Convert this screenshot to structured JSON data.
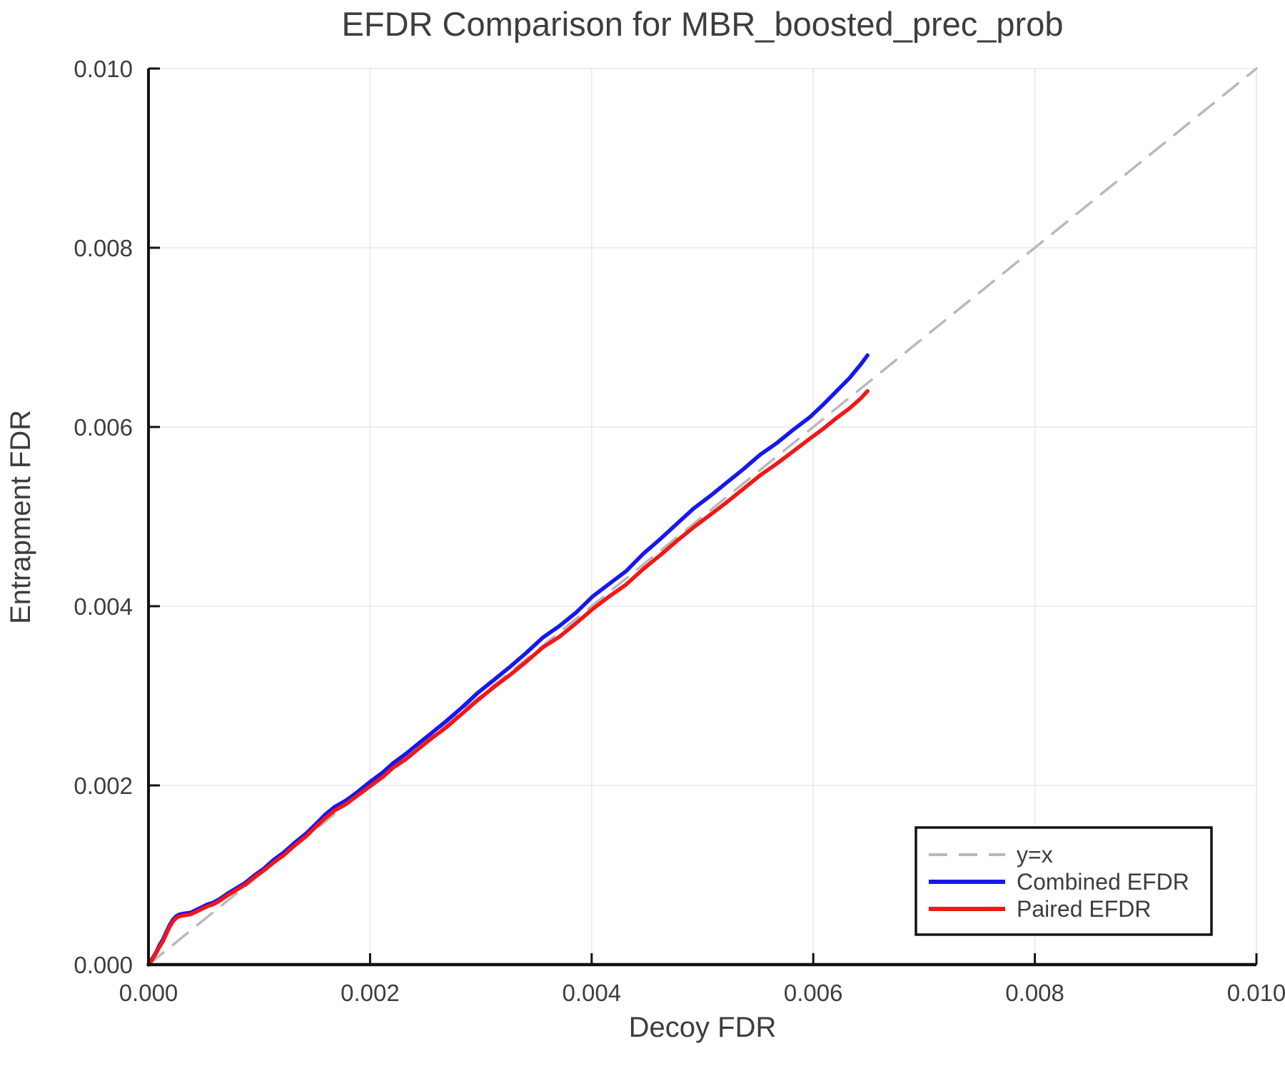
{
  "chart_data": {
    "type": "line",
    "title": "EFDR Comparison for MBR_boosted_prec_prob",
    "xlabel": "Decoy FDR",
    "ylabel": "Entrapment FDR",
    "xlim": [
      0,
      0.01
    ],
    "ylim": [
      0,
      0.01
    ],
    "grid": true,
    "xticks": {
      "values": [
        0,
        0.002,
        0.004,
        0.006,
        0.008,
        0.01
      ],
      "labels": [
        "0.000",
        "0.002",
        "0.004",
        "0.006",
        "0.008",
        "0.010"
      ]
    },
    "yticks": {
      "values": [
        0,
        0.002,
        0.004,
        0.006,
        0.008,
        0.01
      ],
      "labels": [
        "0.000",
        "0.002",
        "0.004",
        "0.006",
        "0.008",
        "0.010"
      ]
    },
    "legend": {
      "position": "lower right",
      "entries": [
        {
          "label": "y=x",
          "color": "#b9b9b9",
          "style": "dashed"
        },
        {
          "label": "Combined EFDR",
          "color": "#1717ee",
          "style": "solid"
        },
        {
          "label": "Paired EFDR",
          "color": "#f21717",
          "style": "solid"
        }
      ]
    },
    "colors": {
      "text": "#3d3d3d",
      "grid": "#e8e8e8",
      "spine": "#121212",
      "identity_line": "#b9b9b9",
      "combined": "#1717ee",
      "paired": "#f21717"
    },
    "series": [
      {
        "name": "y=x",
        "style": "dashed",
        "color": "#b9b9b9",
        "points": [
          [
            0,
            0
          ],
          [
            0.01,
            0.01
          ]
        ]
      },
      {
        "name": "Combined EFDR",
        "style": "solid",
        "color": "#1717ee",
        "points": [
          [
            0.0,
            0.0
          ],
          [
            3e-05,
            6e-05
          ],
          [
            7e-05,
            0.00014
          ],
          [
            0.0001,
            0.00022
          ],
          [
            0.00013,
            0.00028
          ],
          [
            0.00016,
            0.00036
          ],
          [
            0.00019,
            0.00044
          ],
          [
            0.00022,
            0.0005
          ],
          [
            0.00025,
            0.00054
          ],
          [
            0.00028,
            0.00056
          ],
          [
            0.00032,
            0.00057
          ],
          [
            0.00038,
            0.00058
          ],
          [
            0.00043,
            0.00061
          ],
          [
            0.00048,
            0.00064
          ],
          [
            0.00053,
            0.00067
          ],
          [
            0.00058,
            0.00069
          ],
          [
            0.00064,
            0.00073
          ],
          [
            0.00071,
            0.00079
          ],
          [
            0.00079,
            0.00085
          ],
          [
            0.00087,
            0.00091
          ],
          [
            0.00096,
            0.001
          ],
          [
            0.00104,
            0.00107
          ],
          [
            0.00113,
            0.00117
          ],
          [
            0.00122,
            0.00125
          ],
          [
            0.00132,
            0.00136
          ],
          [
            0.00142,
            0.00146
          ],
          [
            0.00152,
            0.00158
          ],
          [
            0.0016,
            0.00168
          ],
          [
            0.00168,
            0.00176
          ],
          [
            0.00178,
            0.00183
          ],
          [
            0.00189,
            0.00193
          ],
          [
            0.002,
            0.00204
          ],
          [
            0.00211,
            0.00214
          ],
          [
            0.00221,
            0.00225
          ],
          [
            0.00232,
            0.00235
          ],
          [
            0.00243,
            0.00246
          ],
          [
            0.00256,
            0.00259
          ],
          [
            0.00269,
            0.00272
          ],
          [
            0.00283,
            0.00287
          ],
          [
            0.00297,
            0.00303
          ],
          [
            0.00311,
            0.00317
          ],
          [
            0.00326,
            0.00332
          ],
          [
            0.00341,
            0.00348
          ],
          [
            0.00356,
            0.00365
          ],
          [
            0.00371,
            0.00378
          ],
          [
            0.00386,
            0.00393
          ],
          [
            0.00401,
            0.00411
          ],
          [
            0.00416,
            0.00425
          ],
          [
            0.00431,
            0.00439
          ],
          [
            0.00447,
            0.00459
          ],
          [
            0.00462,
            0.00475
          ],
          [
            0.00477,
            0.00492
          ],
          [
            0.00492,
            0.00509
          ],
          [
            0.00507,
            0.00523
          ],
          [
            0.00522,
            0.00538
          ],
          [
            0.00537,
            0.00553
          ],
          [
            0.00552,
            0.00569
          ],
          [
            0.00567,
            0.00582
          ],
          [
            0.00582,
            0.00597
          ],
          [
            0.00597,
            0.00611
          ],
          [
            0.00609,
            0.00625
          ],
          [
            0.00621,
            0.0064
          ],
          [
            0.00633,
            0.00655
          ],
          [
            0.00643,
            0.0067
          ],
          [
            0.00649,
            0.0068
          ]
        ]
      },
      {
        "name": "Paired EFDR",
        "style": "solid",
        "color": "#f21717",
        "points": [
          [
            0.0,
            0.0
          ],
          [
            3e-05,
            5e-05
          ],
          [
            7e-05,
            0.00013
          ],
          [
            0.0001,
            0.0002
          ],
          [
            0.00013,
            0.00026
          ],
          [
            0.00016,
            0.00034
          ],
          [
            0.00019,
            0.00042
          ],
          [
            0.00022,
            0.00048
          ],
          [
            0.00025,
            0.00052
          ],
          [
            0.00028,
            0.00054
          ],
          [
            0.00032,
            0.00055
          ],
          [
            0.00038,
            0.00056
          ],
          [
            0.00043,
            0.00059
          ],
          [
            0.00048,
            0.00062
          ],
          [
            0.00053,
            0.00065
          ],
          [
            0.00058,
            0.00067
          ],
          [
            0.00064,
            0.00071
          ],
          [
            0.00071,
            0.00077
          ],
          [
            0.00079,
            0.00083
          ],
          [
            0.00087,
            0.00089
          ],
          [
            0.00096,
            0.00098
          ],
          [
            0.00104,
            0.00105
          ],
          [
            0.00113,
            0.00114
          ],
          [
            0.00122,
            0.00122
          ],
          [
            0.00132,
            0.00133
          ],
          [
            0.00142,
            0.00143
          ],
          [
            0.00152,
            0.00155
          ],
          [
            0.0016,
            0.00164
          ],
          [
            0.00168,
            0.00172
          ],
          [
            0.00178,
            0.00179
          ],
          [
            0.00189,
            0.00189
          ],
          [
            0.002,
            0.00199
          ],
          [
            0.00211,
            0.00209
          ],
          [
            0.00221,
            0.0022
          ],
          [
            0.00232,
            0.00229
          ],
          [
            0.00243,
            0.0024
          ],
          [
            0.00256,
            0.00253
          ],
          [
            0.00269,
            0.00265
          ],
          [
            0.00283,
            0.0028
          ],
          [
            0.00297,
            0.00295
          ],
          [
            0.00311,
            0.00309
          ],
          [
            0.00326,
            0.00323
          ],
          [
            0.00341,
            0.00338
          ],
          [
            0.00356,
            0.00354
          ],
          [
            0.00371,
            0.00366
          ],
          [
            0.00386,
            0.00381
          ],
          [
            0.00401,
            0.00397
          ],
          [
            0.00416,
            0.00411
          ],
          [
            0.00431,
            0.00424
          ],
          [
            0.00447,
            0.00442
          ],
          [
            0.00462,
            0.00457
          ],
          [
            0.00477,
            0.00473
          ],
          [
            0.00492,
            0.00488
          ],
          [
            0.00507,
            0.00502
          ],
          [
            0.00522,
            0.00516
          ],
          [
            0.00537,
            0.00531
          ],
          [
            0.00552,
            0.00546
          ],
          [
            0.00567,
            0.00559
          ],
          [
            0.00582,
            0.00573
          ],
          [
            0.00597,
            0.00587
          ],
          [
            0.00609,
            0.00598
          ],
          [
            0.00621,
            0.0061
          ],
          [
            0.00633,
            0.00621
          ],
          [
            0.00643,
            0.00632
          ],
          [
            0.00649,
            0.0064
          ]
        ]
      }
    ]
  }
}
